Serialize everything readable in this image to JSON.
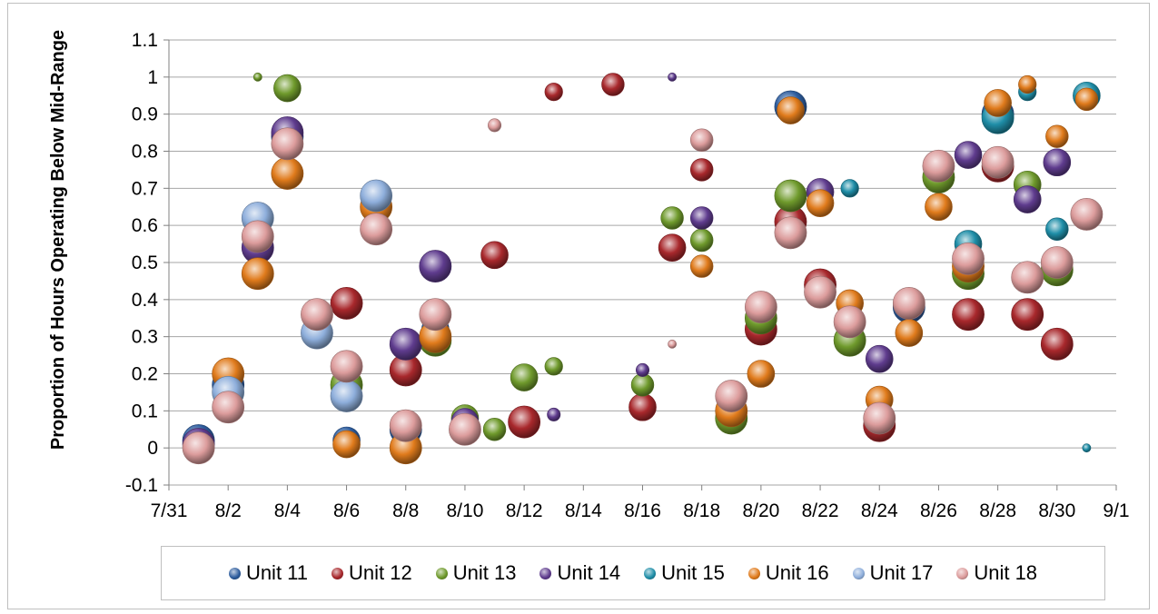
{
  "chart_data": {
    "type": "bubble",
    "ylabel": "Proportion of Hours Operating Below Mid-Range",
    "xlabel": "",
    "ylim": [
      -0.1,
      1.1
    ],
    "xlim": [
      "7/31",
      "9/1"
    ],
    "grid": true,
    "legend_position": "bottom",
    "y_ticks": [
      "-0.1",
      "0",
      "0.1",
      "0.2",
      "0.3",
      "0.4",
      "0.5",
      "0.6",
      "0.7",
      "0.8",
      "0.9",
      "1",
      "1.1"
    ],
    "x_ticks": [
      "7/31",
      "8/2",
      "8/4",
      "8/6",
      "8/8",
      "8/10",
      "8/12",
      "8/14",
      "8/16",
      "8/18",
      "8/20",
      "8/22",
      "8/24",
      "8/26",
      "8/28",
      "8/30",
      "9/1"
    ],
    "series": [
      {
        "name": "Unit 11",
        "color": "#2e5d9e",
        "points": [
          {
            "x": "8/1",
            "y": 0.02,
            "size": 6
          },
          {
            "x": "8/2",
            "y": 0.17,
            "size": 6
          },
          {
            "x": "8/4",
            "y": 0.84,
            "size": 6
          },
          {
            "x": "8/6",
            "y": 0.02,
            "size": 5
          },
          {
            "x": "8/8",
            "y": 0.05,
            "size": 6
          },
          {
            "x": "8/9",
            "y": 0.32,
            "size": 5
          },
          {
            "x": "8/21",
            "y": 0.92,
            "size": 6
          },
          {
            "x": "8/25",
            "y": 0.38,
            "size": 6
          },
          {
            "x": "8/28",
            "y": 0.9,
            "size": 6
          }
        ]
      },
      {
        "name": "Unit 12",
        "color": "#a8282c",
        "points": [
          {
            "x": "8/6",
            "y": 0.39,
            "size": 6
          },
          {
            "x": "8/8",
            "y": 0.21,
            "size": 6
          },
          {
            "x": "8/11",
            "y": 0.52,
            "size": 5
          },
          {
            "x": "8/12",
            "y": 0.07,
            "size": 6
          },
          {
            "x": "8/13",
            "y": 0.96,
            "size": 3
          },
          {
            "x": "8/15",
            "y": 0.98,
            "size": 4
          },
          {
            "x": "8/16",
            "y": 0.11,
            "size": 5
          },
          {
            "x": "8/17",
            "y": 0.54,
            "size": 5
          },
          {
            "x": "8/18",
            "y": 0.75,
            "size": 4
          },
          {
            "x": "8/20",
            "y": 0.32,
            "size": 6
          },
          {
            "x": "8/21",
            "y": 0.61,
            "size": 6
          },
          {
            "x": "8/22",
            "y": 0.44,
            "size": 6
          },
          {
            "x": "8/23",
            "y": 0.3,
            "size": 5
          },
          {
            "x": "8/24",
            "y": 0.06,
            "size": 6
          },
          {
            "x": "8/27",
            "y": 0.36,
            "size": 6
          },
          {
            "x": "8/28",
            "y": 0.76,
            "size": 6
          },
          {
            "x": "8/29",
            "y": 0.36,
            "size": 6
          },
          {
            "x": "8/30",
            "y": 0.28,
            "size": 6
          }
        ]
      },
      {
        "name": "Unit 13",
        "color": "#6f9a2c",
        "points": [
          {
            "x": "8/3",
            "y": 1.0,
            "size": 1
          },
          {
            "x": "8/4",
            "y": 0.97,
            "size": 5
          },
          {
            "x": "8/6",
            "y": 0.17,
            "size": 6
          },
          {
            "x": "8/9",
            "y": 0.29,
            "size": 6
          },
          {
            "x": "8/10",
            "y": 0.08,
            "size": 5
          },
          {
            "x": "8/11",
            "y": 0.05,
            "size": 4
          },
          {
            "x": "8/12",
            "y": 0.19,
            "size": 5
          },
          {
            "x": "8/13",
            "y": 0.22,
            "size": 3
          },
          {
            "x": "8/16",
            "y": 0.17,
            "size": 4
          },
          {
            "x": "8/17",
            "y": 0.62,
            "size": 4
          },
          {
            "x": "8/18",
            "y": 0.56,
            "size": 4
          },
          {
            "x": "8/19",
            "y": 0.08,
            "size": 6
          },
          {
            "x": "8/20",
            "y": 0.35,
            "size": 6
          },
          {
            "x": "8/21",
            "y": 0.68,
            "size": 6
          },
          {
            "x": "8/23",
            "y": 0.29,
            "size": 6
          },
          {
            "x": "8/26",
            "y": 0.73,
            "size": 6
          },
          {
            "x": "8/27",
            "y": 0.47,
            "size": 6
          },
          {
            "x": "8/29",
            "y": 0.71,
            "size": 5
          },
          {
            "x": "8/30",
            "y": 0.48,
            "size": 6
          }
        ]
      },
      {
        "name": "Unit 14",
        "color": "#5f3c8e",
        "points": [
          {
            "x": "8/1",
            "y": 0.01,
            "size": 6
          },
          {
            "x": "8/3",
            "y": 0.54,
            "size": 6
          },
          {
            "x": "8/4",
            "y": 0.85,
            "size": 6
          },
          {
            "x": "8/8",
            "y": 0.28,
            "size": 6
          },
          {
            "x": "8/9",
            "y": 0.49,
            "size": 6
          },
          {
            "x": "8/10",
            "y": 0.07,
            "size": 5
          },
          {
            "x": "8/13",
            "y": 0.09,
            "size": 2
          },
          {
            "x": "8/16",
            "y": 0.21,
            "size": 2
          },
          {
            "x": "8/17",
            "y": 1.0,
            "size": 1
          },
          {
            "x": "8/18",
            "y": 0.62,
            "size": 4
          },
          {
            "x": "8/22",
            "y": 0.69,
            "size": 5
          },
          {
            "x": "8/24",
            "y": 0.24,
            "size": 5
          },
          {
            "x": "8/27",
            "y": 0.79,
            "size": 5
          },
          {
            "x": "8/29",
            "y": 0.67,
            "size": 5
          },
          {
            "x": "8/30",
            "y": 0.77,
            "size": 5
          }
        ]
      },
      {
        "name": "Unit 15",
        "color": "#1f8ea8",
        "points": [
          {
            "x": "8/23",
            "y": 0.7,
            "size": 3
          },
          {
            "x": "8/27",
            "y": 0.55,
            "size": 5
          },
          {
            "x": "8/28",
            "y": 0.89,
            "size": 6
          },
          {
            "x": "8/29",
            "y": 0.96,
            "size": 3
          },
          {
            "x": "8/30",
            "y": 0.59,
            "size": 4
          },
          {
            "x": "8/31",
            "y": 0.95,
            "size": 5
          },
          {
            "x": "8/31",
            "y": 0.0,
            "size": 1
          }
        ]
      },
      {
        "name": "Unit 16",
        "color": "#e07b1c",
        "points": [
          {
            "x": "8/2",
            "y": 0.2,
            "size": 6
          },
          {
            "x": "8/3",
            "y": 0.47,
            "size": 6
          },
          {
            "x": "8/4",
            "y": 0.74,
            "size": 6
          },
          {
            "x": "8/6",
            "y": 0.01,
            "size": 5
          },
          {
            "x": "8/7",
            "y": 0.65,
            "size": 6
          },
          {
            "x": "8/8",
            "y": 0.0,
            "size": 6
          },
          {
            "x": "8/9",
            "y": 0.3,
            "size": 6
          },
          {
            "x": "8/18",
            "y": 0.49,
            "size": 4
          },
          {
            "x": "8/19",
            "y": 0.1,
            "size": 6
          },
          {
            "x": "8/20",
            "y": 0.2,
            "size": 5
          },
          {
            "x": "8/21",
            "y": 0.91,
            "size": 5
          },
          {
            "x": "8/22",
            "y": 0.66,
            "size": 5
          },
          {
            "x": "8/23",
            "y": 0.39,
            "size": 5
          },
          {
            "x": "8/24",
            "y": 0.13,
            "size": 5
          },
          {
            "x": "8/25",
            "y": 0.31,
            "size": 5
          },
          {
            "x": "8/26",
            "y": 0.65,
            "size": 5
          },
          {
            "x": "8/27",
            "y": 0.49,
            "size": 6
          },
          {
            "x": "8/28",
            "y": 0.93,
            "size": 5
          },
          {
            "x": "8/29",
            "y": 0.98,
            "size": 3
          },
          {
            "x": "8/30",
            "y": 0.84,
            "size": 4
          },
          {
            "x": "8/31",
            "y": 0.94,
            "size": 4
          }
        ]
      },
      {
        "name": "Unit 17",
        "color": "#8eaedb",
        "points": [
          {
            "x": "8/2",
            "y": 0.15,
            "size": 6
          },
          {
            "x": "8/3",
            "y": 0.62,
            "size": 6
          },
          {
            "x": "8/5",
            "y": 0.31,
            "size": 6
          },
          {
            "x": "8/6",
            "y": 0.14,
            "size": 6
          },
          {
            "x": "8/7",
            "y": 0.68,
            "size": 6
          }
        ]
      },
      {
        "name": "Unit 18",
        "color": "#dc9c9c",
        "points": [
          {
            "x": "8/1",
            "y": 0.0,
            "size": 6
          },
          {
            "x": "8/2",
            "y": 0.11,
            "size": 6
          },
          {
            "x": "8/3",
            "y": 0.57,
            "size": 6
          },
          {
            "x": "8/4",
            "y": 0.82,
            "size": 6
          },
          {
            "x": "8/5",
            "y": 0.36,
            "size": 6
          },
          {
            "x": "8/6",
            "y": 0.22,
            "size": 6
          },
          {
            "x": "8/7",
            "y": 0.59,
            "size": 6
          },
          {
            "x": "8/8",
            "y": 0.06,
            "size": 6
          },
          {
            "x": "8/9",
            "y": 0.36,
            "size": 6
          },
          {
            "x": "8/10",
            "y": 0.05,
            "size": 6
          },
          {
            "x": "8/11",
            "y": 0.87,
            "size": 2
          },
          {
            "x": "8/17",
            "y": 0.28,
            "size": 1
          },
          {
            "x": "8/18",
            "y": 0.83,
            "size": 4
          },
          {
            "x": "8/19",
            "y": 0.14,
            "size": 6
          },
          {
            "x": "8/20",
            "y": 0.38,
            "size": 6
          },
          {
            "x": "8/21",
            "y": 0.58,
            "size": 6
          },
          {
            "x": "8/22",
            "y": 0.42,
            "size": 6
          },
          {
            "x": "8/23",
            "y": 0.34,
            "size": 6
          },
          {
            "x": "8/24",
            "y": 0.08,
            "size": 6
          },
          {
            "x": "8/25",
            "y": 0.39,
            "size": 6
          },
          {
            "x": "8/26",
            "y": 0.76,
            "size": 6
          },
          {
            "x": "8/27",
            "y": 0.51,
            "size": 6
          },
          {
            "x": "8/28",
            "y": 0.77,
            "size": 6
          },
          {
            "x": "8/29",
            "y": 0.46,
            "size": 6
          },
          {
            "x": "8/30",
            "y": 0.5,
            "size": 6
          },
          {
            "x": "8/31",
            "y": 0.63,
            "size": 6
          }
        ]
      }
    ]
  }
}
